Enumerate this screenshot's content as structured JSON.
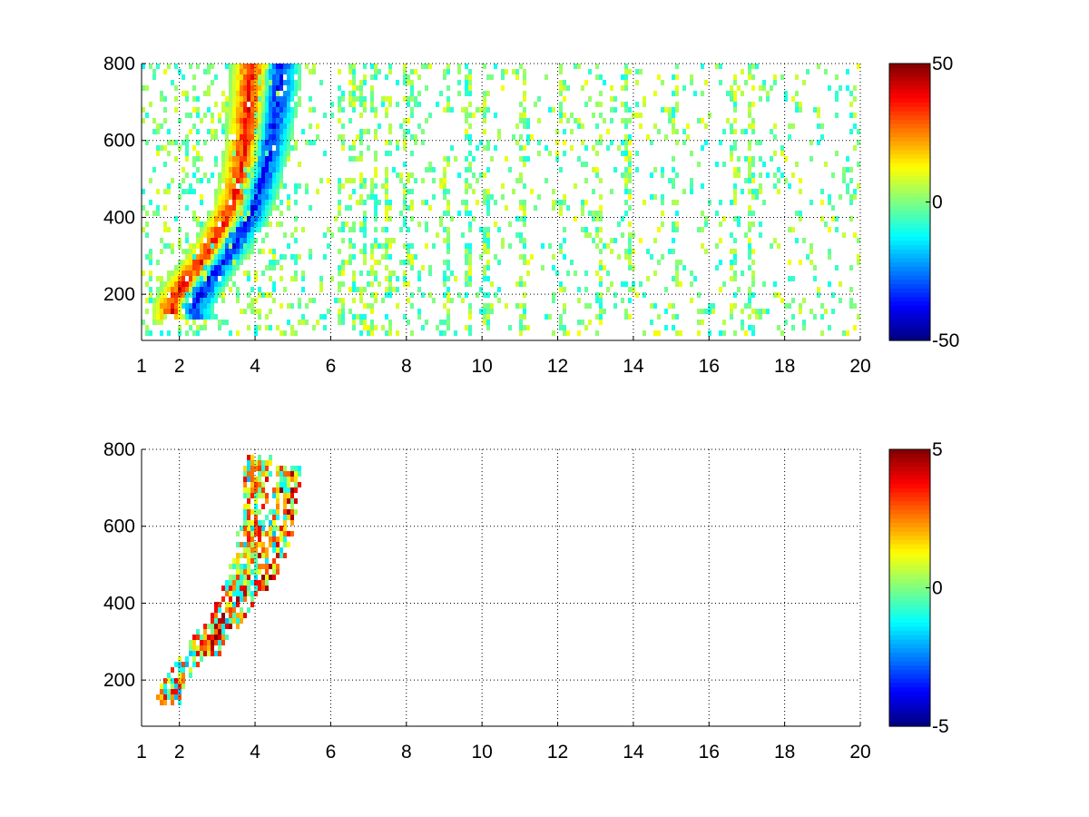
{
  "figure": {
    "background": "#ffffff"
  },
  "chart_data": [
    {
      "type": "heatmap",
      "title": "",
      "xlabel": "",
      "ylabel": "",
      "xlim": [
        1,
        20
      ],
      "ylim": [
        80,
        800
      ],
      "xticks": [
        1,
        2,
        4,
        6,
        8,
        10,
        12,
        14,
        16,
        18,
        20
      ],
      "xgrid": [
        2,
        4,
        6,
        8,
        10,
        12,
        14,
        16,
        18
      ],
      "yticks": [
        200,
        400,
        600,
        800
      ],
      "grid": "dotted",
      "colormap": "jet",
      "colorbar": {
        "min": -50,
        "max": 50,
        "ticks": [
          50,
          0,
          -50
        ],
        "placement": "right"
      },
      "features": [
        {
          "kind": "ridge",
          "sign": 1,
          "value": 45,
          "points": [
            [
              1.8,
              160
            ],
            [
              2.2,
              230
            ],
            [
              2.6,
              280
            ],
            [
              3.0,
              340
            ],
            [
              3.4,
              420
            ],
            [
              3.6,
              500
            ],
            [
              3.75,
              600
            ],
            [
              3.85,
              700
            ],
            [
              3.9,
              790
            ]
          ]
        },
        {
          "kind": "ridge",
          "sign": -1,
          "value": -45,
          "points": [
            [
              2.4,
              160
            ],
            [
              2.8,
              230
            ],
            [
              3.3,
              300
            ],
            [
              3.8,
              380
            ],
            [
              4.1,
              460
            ],
            [
              4.35,
              560
            ],
            [
              4.55,
              660
            ],
            [
              4.7,
              790
            ]
          ]
        }
      ],
      "background_streaks": {
        "density": 0.12,
        "value_range": [
          -12,
          12
        ],
        "strong_columns": [
          6.2,
          6.5,
          6.8,
          7.0,
          7.4,
          7.9,
          8.0,
          9.0,
          9.5,
          10.0,
          11.0,
          12.0,
          13.0,
          13.8,
          15.0,
          16.5,
          17.0
        ]
      }
    },
    {
      "type": "heatmap",
      "title": "",
      "xlabel": "",
      "ylabel": "",
      "xlim": [
        1,
        20
      ],
      "ylim": [
        80,
        800
      ],
      "xticks": [
        1,
        2,
        4,
        6,
        8,
        10,
        12,
        14,
        16,
        18,
        20
      ],
      "xgrid": [
        2,
        4,
        6,
        8,
        10,
        12,
        14,
        16,
        18
      ],
      "yticks": [
        200,
        400,
        600,
        800
      ],
      "grid": "dotted",
      "colormap": "jet",
      "colorbar": {
        "min": -5,
        "max": 5,
        "ticks": [
          5,
          0,
          -5
        ],
        "placement": "right"
      },
      "features": [
        {
          "kind": "band",
          "value_range": [
            -2,
            4
          ],
          "points": [
            [
              1.7,
              160
            ],
            [
              2.1,
              220
            ],
            [
              2.6,
              290
            ],
            [
              3.1,
              350
            ],
            [
              3.5,
              430
            ],
            [
              3.8,
              530
            ],
            [
              4.0,
              640
            ],
            [
              4.1,
              780
            ]
          ]
        },
        {
          "kind": "band",
          "value_range": [
            -2,
            5
          ],
          "points": [
            [
              2.8,
              280
            ],
            [
              3.3,
              340
            ],
            [
              3.8,
              410
            ],
            [
              4.3,
              480
            ],
            [
              4.6,
              560
            ],
            [
              4.8,
              660
            ],
            [
              4.9,
              740
            ]
          ]
        }
      ],
      "background_streaks": {
        "density": 0.0,
        "value_range": [
          -1,
          1
        ],
        "strong_columns": []
      }
    }
  ]
}
